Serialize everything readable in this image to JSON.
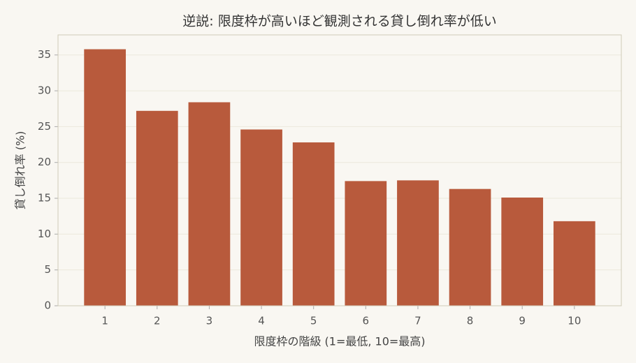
{
  "chart_data": {
    "type": "bar",
    "title": "逆説: 限度枠が高いほど観測される貸し倒れ率が低い",
    "x_label": "限度枠の階級 (1=最低, 10=最高)",
    "y_label": "貸し倒れ率 (%)",
    "categories": [
      "1",
      "2",
      "3",
      "4",
      "5",
      "6",
      "7",
      "8",
      "9",
      "10"
    ],
    "values": [
      35.8,
      27.2,
      28.4,
      24.6,
      22.8,
      17.4,
      17.5,
      16.3,
      15.1,
      11.8
    ],
    "color": "#b85a3c",
    "ylim": [
      0,
      37.8
    ],
    "yticks": [
      0,
      5,
      10,
      15,
      20,
      25,
      30,
      35
    ],
    "grid": true
  }
}
